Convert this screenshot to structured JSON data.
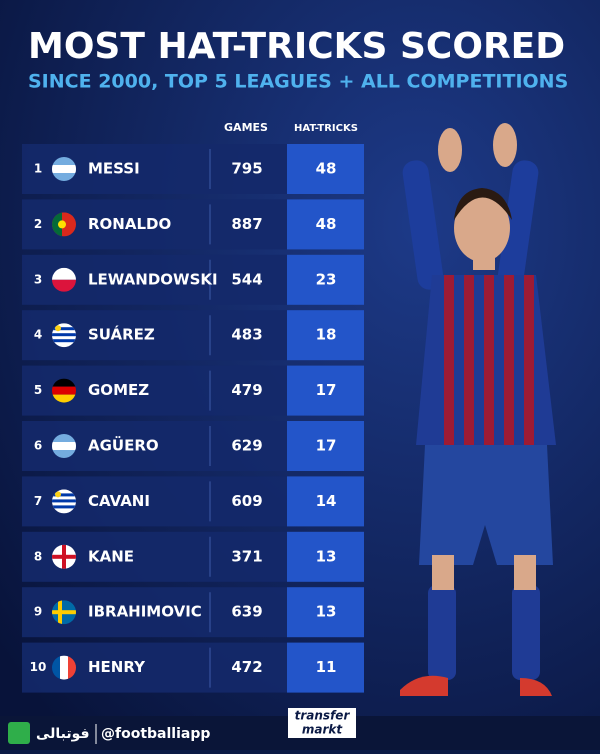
{
  "header": {
    "title": "MOST HAT-TRICKS SCORED",
    "subtitle": "SINCE 2000, TOP 5 LEAGUES + ALL COMPETITIONS"
  },
  "table": {
    "columns": [
      "GAMES",
      "HAT-TRICKS"
    ],
    "rows": [
      {
        "rank": 1,
        "name": "MESSI",
        "games": 795,
        "hat_tricks": 48
      },
      {
        "rank": 2,
        "name": "RONALDO",
        "games": 887,
        "hat_tricks": 48
      },
      {
        "rank": 3,
        "name": "LEWANDOWSKI",
        "games": 544,
        "hat_tricks": 23
      },
      {
        "rank": 4,
        "name": "SUÁREZ",
        "games": 483,
        "hat_tricks": 18
      },
      {
        "rank": 5,
        "name": "GOMEZ",
        "games": 479,
        "hat_tricks": 17
      },
      {
        "rank": 6,
        "name": "AGÜERO",
        "games": 629,
        "hat_tricks": 17
      },
      {
        "rank": 7,
        "name": "CAVANI",
        "games": 609,
        "hat_tricks": 14
      },
      {
        "rank": 8,
        "name": "KANE",
        "games": 371,
        "hat_tricks": 13
      },
      {
        "rank": 9,
        "name": "IBRAHIMOVIC",
        "games": 639,
        "hat_tricks": 13
      },
      {
        "rank": 10,
        "name": "HENRY",
        "games": 472,
        "hat_tricks": 11
      }
    ]
  },
  "footer": {
    "handle": "@footballiapp",
    "brand": "فوتبالی",
    "logo_top": "transfer",
    "logo_bottom": "markt"
  }
}
